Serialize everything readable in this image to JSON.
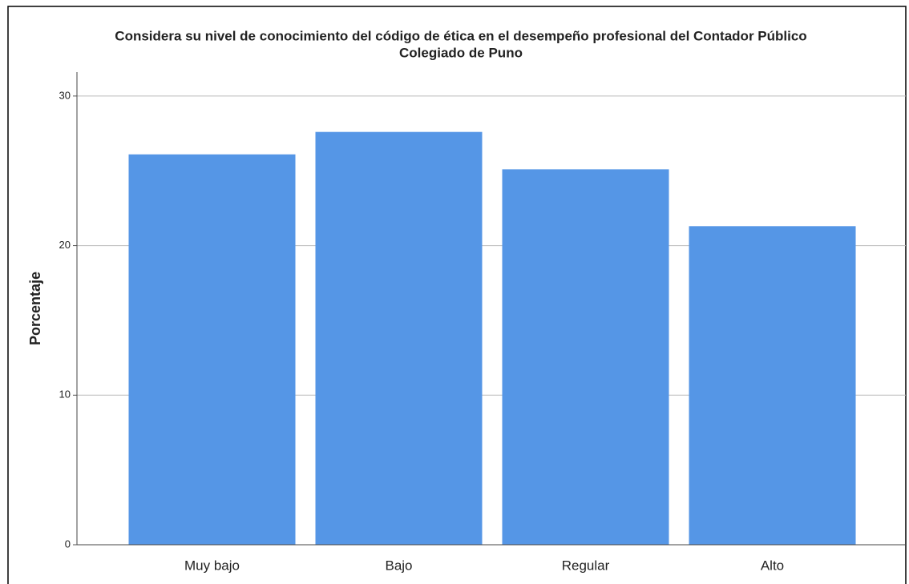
{
  "chart_data": {
    "type": "bar",
    "title": [
      "Considera su nivel de conocimiento del código de ética en el desempeño profesional del Contador Público",
      "Colegiado de Puno"
    ],
    "y_label": "Porcentaje",
    "categories": [
      "Muy bajo",
      "Bajo",
      "Regular",
      "Alto"
    ],
    "values": [
      26.1,
      27.6,
      25.1,
      21.3
    ],
    "color": "#5596e6",
    "ylim": [
      0,
      31.6
    ],
    "yticks": [
      0,
      10,
      20,
      30
    ],
    "grid": true
  }
}
